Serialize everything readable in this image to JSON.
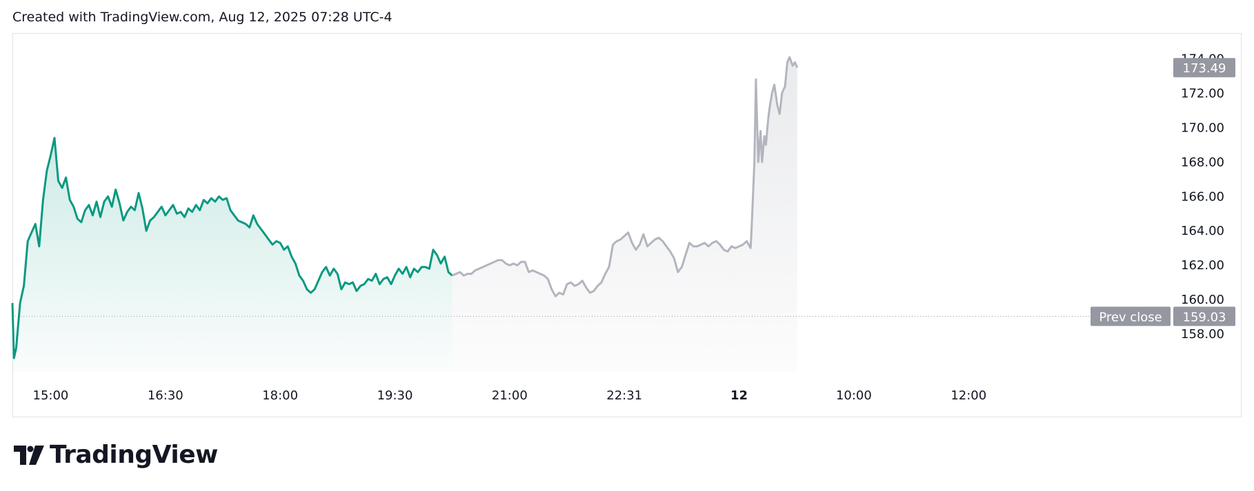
{
  "header": {
    "text": "Created with TradingView.com, Aug 12, 2025 07:28 UTC-4"
  },
  "brand": {
    "name": "TradingView"
  },
  "colors": {
    "session": "#089981",
    "extended": "#b2b5be",
    "label_bg": "#9598a1"
  },
  "chart_data": {
    "type": "area",
    "title": "",
    "xlabel": "",
    "ylabel": "",
    "ylim": [
      155.8,
      175.5
    ],
    "y_ticks": [
      "158.00",
      "160.00",
      "162.00",
      "164.00",
      "166.00",
      "168.00",
      "170.00",
      "172.00",
      "174.00"
    ],
    "x_ticks": [
      {
        "label": "15:00",
        "t": 0.5,
        "bold": false
      },
      {
        "label": "16:30",
        "t": 2.0,
        "bold": false
      },
      {
        "label": "18:00",
        "t": 3.5,
        "bold": false
      },
      {
        "label": "19:30",
        "t": 5.0,
        "bold": false
      },
      {
        "label": "21:00",
        "t": 6.5,
        "bold": false
      },
      {
        "label": "22:31",
        "t": 8.0,
        "bold": false
      },
      {
        "label": "12",
        "t": 9.5,
        "bold": true
      },
      {
        "label": "10:00",
        "t": 11.0,
        "bold": false
      },
      {
        "label": "12:00",
        "t": 12.5,
        "bold": false
      }
    ],
    "prev_close": {
      "label": "Prev close",
      "value": 159.03
    },
    "last_price": {
      "value": 173.49
    },
    "series": [
      {
        "segment": "regular-session",
        "points": [
          [
            0.0,
            159.8
          ],
          [
            0.02,
            156.6
          ],
          [
            0.05,
            157.2
          ],
          [
            0.1,
            159.8
          ],
          [
            0.15,
            160.8
          ],
          [
            0.2,
            163.4
          ],
          [
            0.25,
            163.9
          ],
          [
            0.3,
            164.4
          ],
          [
            0.35,
            163.1
          ],
          [
            0.4,
            165.8
          ],
          [
            0.45,
            167.5
          ],
          [
            0.5,
            168.4
          ],
          [
            0.55,
            169.4
          ],
          [
            0.6,
            166.9
          ],
          [
            0.65,
            166.5
          ],
          [
            0.7,
            167.1
          ],
          [
            0.75,
            165.8
          ],
          [
            0.8,
            165.4
          ],
          [
            0.85,
            164.7
          ],
          [
            0.9,
            164.5
          ],
          [
            0.95,
            165.2
          ],
          [
            1.0,
            165.5
          ],
          [
            1.05,
            164.9
          ],
          [
            1.1,
            165.7
          ],
          [
            1.15,
            164.8
          ],
          [
            1.2,
            165.7
          ],
          [
            1.25,
            166.0
          ],
          [
            1.3,
            165.4
          ],
          [
            1.35,
            166.4
          ],
          [
            1.4,
            165.6
          ],
          [
            1.45,
            164.6
          ],
          [
            1.5,
            165.1
          ],
          [
            1.55,
            165.4
          ],
          [
            1.6,
            165.2
          ],
          [
            1.65,
            166.2
          ],
          [
            1.7,
            165.3
          ],
          [
            1.75,
            164.0
          ],
          [
            1.8,
            164.6
          ],
          [
            1.85,
            164.8
          ],
          [
            1.9,
            165.1
          ],
          [
            1.95,
            165.4
          ],
          [
            2.0,
            164.9
          ],
          [
            2.05,
            165.2
          ],
          [
            2.1,
            165.5
          ],
          [
            2.15,
            165.0
          ],
          [
            2.2,
            165.1
          ],
          [
            2.25,
            164.8
          ],
          [
            2.3,
            165.3
          ],
          [
            2.35,
            165.1
          ],
          [
            2.4,
            165.5
          ],
          [
            2.45,
            165.2
          ],
          [
            2.5,
            165.8
          ],
          [
            2.55,
            165.6
          ],
          [
            2.6,
            165.9
          ],
          [
            2.65,
            165.7
          ],
          [
            2.7,
            166.0
          ],
          [
            2.75,
            165.8
          ],
          [
            2.8,
            165.9
          ],
          [
            2.85,
            165.2
          ],
          [
            2.9,
            164.9
          ],
          [
            2.95,
            164.6
          ],
          [
            3.0,
            164.5
          ],
          [
            3.05,
            164.4
          ],
          [
            3.1,
            164.2
          ],
          [
            3.15,
            164.9
          ],
          [
            3.2,
            164.4
          ],
          [
            3.25,
            164.1
          ],
          [
            3.3,
            163.8
          ],
          [
            3.35,
            163.5
          ],
          [
            3.4,
            163.2
          ],
          [
            3.45,
            163.4
          ],
          [
            3.5,
            163.3
          ],
          [
            3.55,
            162.9
          ],
          [
            3.6,
            163.1
          ],
          [
            3.65,
            162.5
          ],
          [
            3.7,
            162.1
          ],
          [
            3.75,
            161.4
          ],
          [
            3.8,
            161.1
          ],
          [
            3.85,
            160.6
          ],
          [
            3.9,
            160.4
          ],
          [
            3.95,
            160.6
          ],
          [
            4.0,
            161.1
          ],
          [
            4.05,
            161.6
          ],
          [
            4.1,
            161.9
          ],
          [
            4.15,
            161.4
          ],
          [
            4.2,
            161.8
          ],
          [
            4.25,
            161.5
          ],
          [
            4.3,
            160.6
          ],
          [
            4.35,
            161.0
          ],
          [
            4.4,
            160.9
          ],
          [
            4.45,
            161.0
          ],
          [
            4.5,
            160.5
          ],
          [
            4.55,
            160.8
          ],
          [
            4.6,
            160.9
          ],
          [
            4.65,
            161.2
          ],
          [
            4.7,
            161.1
          ],
          [
            4.75,
            161.5
          ],
          [
            4.8,
            160.9
          ],
          [
            4.85,
            161.2
          ],
          [
            4.9,
            161.3
          ],
          [
            4.95,
            160.9
          ],
          [
            5.0,
            161.4
          ],
          [
            5.05,
            161.8
          ],
          [
            5.1,
            161.5
          ],
          [
            5.15,
            161.9
          ],
          [
            5.2,
            161.3
          ],
          [
            5.25,
            161.8
          ],
          [
            5.3,
            161.6
          ],
          [
            5.35,
            161.9
          ],
          [
            5.4,
            161.9
          ],
          [
            5.45,
            161.8
          ],
          [
            5.5,
            162.9
          ],
          [
            5.55,
            162.6
          ],
          [
            5.6,
            162.1
          ],
          [
            5.65,
            162.5
          ],
          [
            5.7,
            161.6
          ],
          [
            5.75,
            161.4
          ]
        ]
      },
      {
        "segment": "extended-hours",
        "points": [
          [
            5.75,
            161.4
          ],
          [
            5.8,
            161.5
          ],
          [
            5.85,
            161.6
          ],
          [
            5.9,
            161.4
          ],
          [
            5.95,
            161.5
          ],
          [
            6.0,
            161.5
          ],
          [
            6.05,
            161.7
          ],
          [
            6.1,
            161.8
          ],
          [
            6.15,
            161.9
          ],
          [
            6.2,
            162.0
          ],
          [
            6.25,
            162.1
          ],
          [
            6.3,
            162.2
          ],
          [
            6.35,
            162.3
          ],
          [
            6.4,
            162.3
          ],
          [
            6.45,
            162.1
          ],
          [
            6.5,
            162.0
          ],
          [
            6.55,
            162.1
          ],
          [
            6.6,
            162.0
          ],
          [
            6.65,
            162.2
          ],
          [
            6.7,
            162.2
          ],
          [
            6.75,
            161.6
          ],
          [
            6.8,
            161.7
          ],
          [
            6.85,
            161.6
          ],
          [
            6.9,
            161.5
          ],
          [
            6.95,
            161.4
          ],
          [
            7.0,
            161.2
          ],
          [
            7.05,
            160.6
          ],
          [
            7.1,
            160.2
          ],
          [
            7.15,
            160.4
          ],
          [
            7.2,
            160.3
          ],
          [
            7.25,
            160.9
          ],
          [
            7.3,
            161.0
          ],
          [
            7.35,
            160.8
          ],
          [
            7.4,
            160.9
          ],
          [
            7.45,
            161.1
          ],
          [
            7.5,
            160.7
          ],
          [
            7.55,
            160.4
          ],
          [
            7.6,
            160.5
          ],
          [
            7.65,
            160.8
          ],
          [
            7.7,
            161.0
          ],
          [
            7.75,
            161.5
          ],
          [
            7.8,
            161.9
          ],
          [
            7.85,
            163.2
          ],
          [
            7.9,
            163.4
          ],
          [
            7.95,
            163.5
          ],
          [
            8.0,
            163.7
          ],
          [
            8.05,
            163.9
          ],
          [
            8.1,
            163.3
          ],
          [
            8.15,
            162.9
          ],
          [
            8.2,
            163.2
          ],
          [
            8.25,
            163.8
          ],
          [
            8.3,
            163.1
          ],
          [
            8.35,
            163.3
          ],
          [
            8.4,
            163.5
          ],
          [
            8.45,
            163.6
          ],
          [
            8.5,
            163.4
          ],
          [
            8.55,
            163.1
          ],
          [
            8.6,
            162.8
          ],
          [
            8.65,
            162.4
          ],
          [
            8.7,
            161.6
          ],
          [
            8.75,
            161.9
          ],
          [
            8.8,
            162.6
          ],
          [
            8.85,
            163.3
          ],
          [
            8.9,
            163.1
          ],
          [
            8.95,
            163.1
          ],
          [
            9.0,
            163.2
          ],
          [
            9.05,
            163.3
          ],
          [
            9.1,
            163.1
          ],
          [
            9.15,
            163.3
          ],
          [
            9.2,
            163.4
          ],
          [
            9.25,
            163.2
          ],
          [
            9.3,
            162.9
          ],
          [
            9.35,
            162.8
          ],
          [
            9.4,
            163.1
          ],
          [
            9.45,
            163.0
          ],
          [
            9.5,
            163.1
          ],
          [
            9.55,
            163.2
          ],
          [
            9.6,
            163.4
          ],
          [
            9.65,
            163.0
          ],
          [
            9.66,
            163.8
          ],
          [
            9.7,
            168.0
          ],
          [
            9.72,
            172.8
          ],
          [
            9.75,
            168.0
          ],
          [
            9.78,
            169.8
          ],
          [
            9.8,
            168.0
          ],
          [
            9.83,
            169.5
          ],
          [
            9.85,
            169.0
          ],
          [
            9.88,
            170.5
          ],
          [
            9.9,
            171.2
          ],
          [
            9.93,
            172.0
          ],
          [
            9.96,
            172.5
          ],
          [
            10.0,
            171.3
          ],
          [
            10.03,
            170.8
          ],
          [
            10.06,
            172.0
          ],
          [
            10.1,
            172.4
          ],
          [
            10.13,
            173.8
          ],
          [
            10.16,
            174.1
          ],
          [
            10.2,
            173.6
          ],
          [
            10.23,
            173.8
          ],
          [
            10.26,
            173.49
          ]
        ]
      }
    ]
  }
}
